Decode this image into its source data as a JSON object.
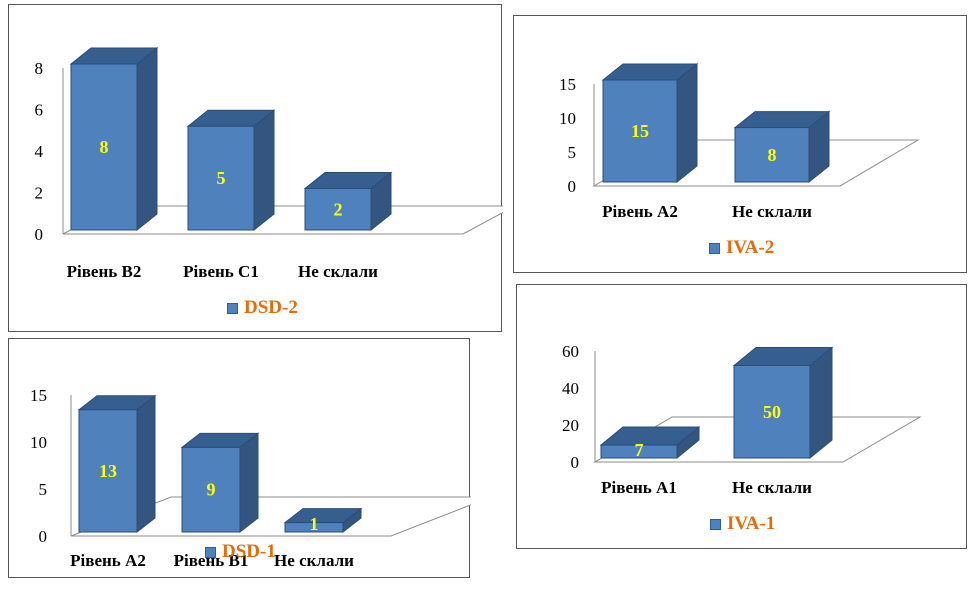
{
  "colors": {
    "front": "#4f81bd",
    "side": "#34557f",
    "top": "#365e8f",
    "edge": "#2b4d78",
    "label": "#ffff00",
    "legend_text": "#e46c0a"
  },
  "chart_data": [
    {
      "type": "bar",
      "series": [
        {
          "name": "DSD-2",
          "values": [
            8,
            5,
            2
          ]
        }
      ],
      "categories": [
        "Рівень B2",
        "Рівень C1",
        "Не склали"
      ],
      "yticks": [
        "0",
        "2",
        "4",
        "6",
        "8"
      ],
      "ylim": [
        0,
        8
      ],
      "data_labels": [
        "8",
        "5",
        "2"
      ],
      "legend": "bottom"
    },
    {
      "type": "bar",
      "series": [
        {
          "name": "IVA-2",
          "values": [
            15,
            8
          ]
        }
      ],
      "categories": [
        "Рівень А2",
        "Не склали"
      ],
      "yticks": [
        "0",
        "5",
        "10",
        "15"
      ],
      "ylim": [
        0,
        15
      ],
      "data_labels": [
        "15",
        "8"
      ],
      "legend": "bottom"
    },
    {
      "type": "bar",
      "series": [
        {
          "name": "DSD-1",
          "values": [
            13,
            9,
            1
          ]
        }
      ],
      "categories": [
        "Рівень А2",
        "Рівень B1",
        "Не склали"
      ],
      "yticks": [
        "0",
        "5",
        "10",
        "15"
      ],
      "ylim": [
        0,
        15
      ],
      "data_labels": [
        "13",
        "9",
        "1"
      ],
      "legend": "bottom"
    },
    {
      "type": "bar",
      "series": [
        {
          "name": "IVA-1",
          "values": [
            7,
            50
          ]
        }
      ],
      "categories": [
        "Рівень А1",
        "Не склали"
      ],
      "yticks": [
        "0",
        "20",
        "40",
        "60"
      ],
      "ylim": [
        0,
        60
      ],
      "data_labels": [
        "7",
        "50"
      ],
      "legend": "bottom"
    }
  ]
}
